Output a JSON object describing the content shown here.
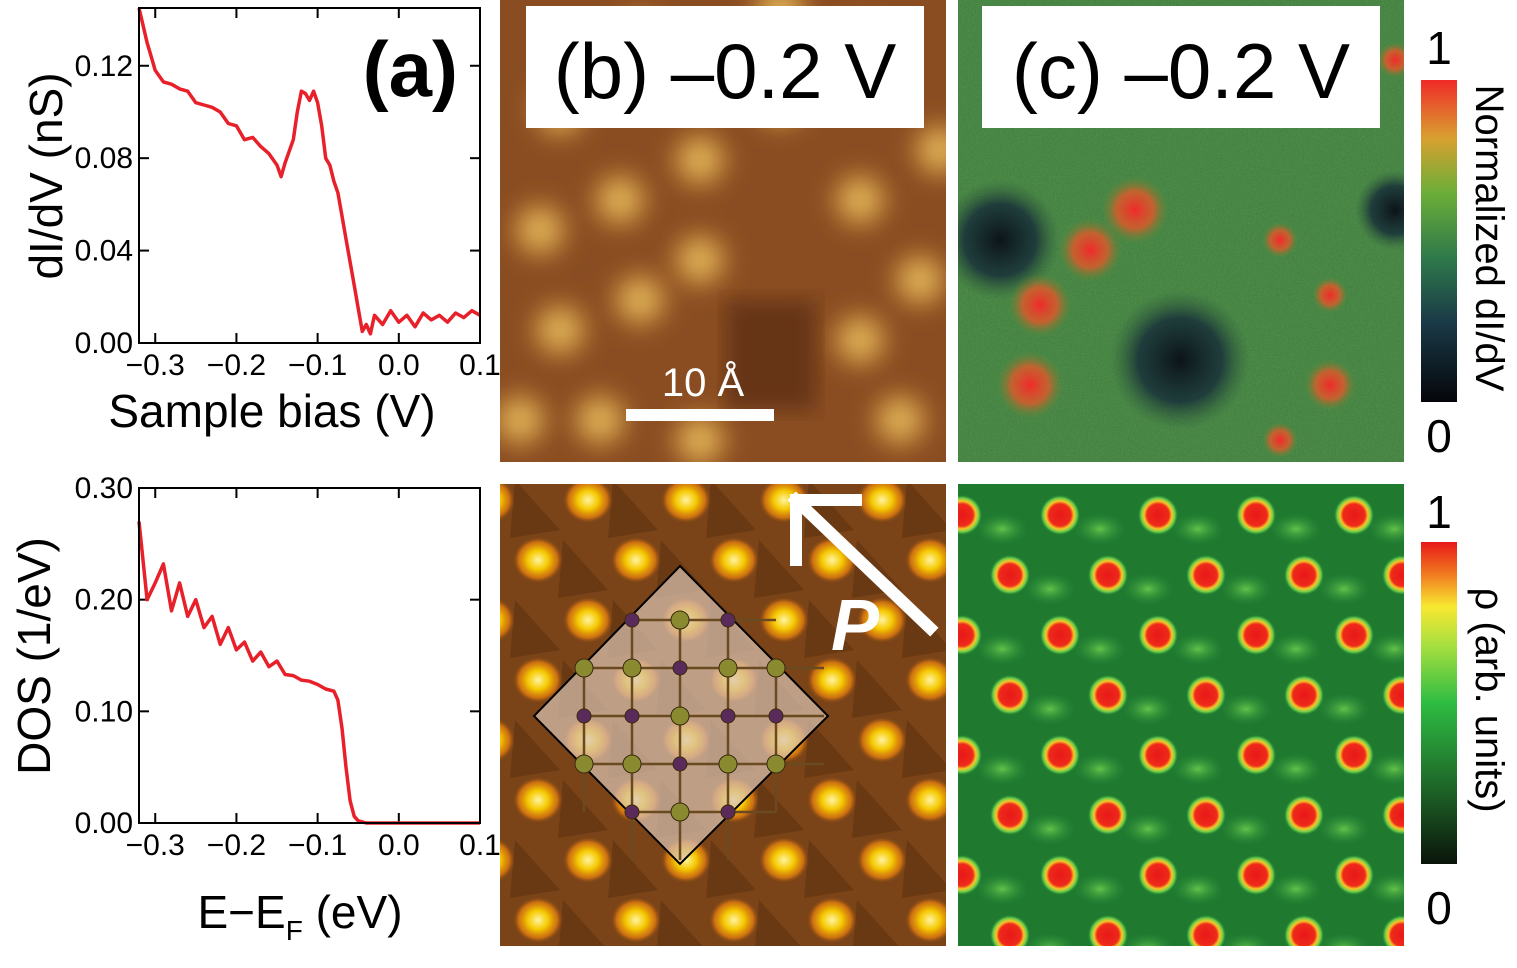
{
  "chart_data": [
    {
      "panel": "(a)",
      "type": "line",
      "title": "(a)",
      "xlabel": "Sample bias (V)",
      "ylabel": "dI/dV (nS)",
      "xlim": [
        -0.32,
        0.1
      ],
      "ylim": [
        0.0,
        0.145
      ],
      "xticks": [
        "−0.3",
        "−0.2",
        "−0.1",
        "0.0",
        "0.1"
      ],
      "yticks": [
        "0.00",
        "0.04",
        "0.08",
        "0.12"
      ],
      "color": "#e8202a",
      "x": [
        -0.32,
        -0.31,
        -0.305,
        -0.3,
        -0.29,
        -0.28,
        -0.27,
        -0.26,
        -0.25,
        -0.24,
        -0.23,
        -0.22,
        -0.21,
        -0.2,
        -0.19,
        -0.18,
        -0.17,
        -0.16,
        -0.15,
        -0.145,
        -0.14,
        -0.13,
        -0.125,
        -0.12,
        -0.115,
        -0.11,
        -0.105,
        -0.1,
        -0.095,
        -0.09,
        -0.085,
        -0.08,
        -0.075,
        -0.07,
        -0.065,
        -0.06,
        -0.055,
        -0.05,
        -0.045,
        -0.04,
        -0.035,
        -0.03,
        -0.02,
        -0.01,
        0.0,
        0.01,
        0.02,
        0.03,
        0.04,
        0.05,
        0.06,
        0.07,
        0.08,
        0.09,
        0.1
      ],
      "y": [
        0.145,
        0.13,
        0.124,
        0.118,
        0.113,
        0.112,
        0.11,
        0.109,
        0.104,
        0.103,
        0.102,
        0.1,
        0.095,
        0.094,
        0.088,
        0.089,
        0.085,
        0.082,
        0.077,
        0.072,
        0.078,
        0.088,
        0.1,
        0.109,
        0.108,
        0.105,
        0.109,
        0.104,
        0.094,
        0.08,
        0.077,
        0.07,
        0.065,
        0.055,
        0.045,
        0.035,
        0.025,
        0.015,
        0.005,
        0.008,
        0.004,
        0.012,
        0.008,
        0.014,
        0.009,
        0.012,
        0.007,
        0.013,
        0.01,
        0.012,
        0.009,
        0.013,
        0.011,
        0.014,
        0.012
      ]
    },
    {
      "panel": "(a) bottom",
      "type": "line",
      "xlabel": "E−E",
      "xlabel_sub": "F",
      "xlabel_unit": " (eV)",
      "ylabel": "DOS (1/eV)",
      "xlim": [
        -0.32,
        0.1
      ],
      "ylim": [
        0.0,
        0.3
      ],
      "xticks": [
        "−0.3",
        "−0.2",
        "−0.1",
        "0.0",
        "0.1"
      ],
      "yticks": [
        "0.00",
        "0.10",
        "0.20",
        "0.30"
      ],
      "color": "#e8202a",
      "x": [
        -0.32,
        -0.31,
        -0.3,
        -0.29,
        -0.28,
        -0.27,
        -0.26,
        -0.25,
        -0.24,
        -0.23,
        -0.22,
        -0.21,
        -0.2,
        -0.19,
        -0.18,
        -0.17,
        -0.16,
        -0.15,
        -0.14,
        -0.13,
        -0.12,
        -0.11,
        -0.1,
        -0.09,
        -0.08,
        -0.075,
        -0.07,
        -0.065,
        -0.06,
        -0.055,
        -0.05,
        -0.045,
        -0.04,
        -0.03,
        0.0,
        0.05,
        0.1
      ],
      "y": [
        0.27,
        0.2,
        0.215,
        0.232,
        0.19,
        0.215,
        0.185,
        0.2,
        0.175,
        0.185,
        0.16,
        0.175,
        0.155,
        0.162,
        0.145,
        0.153,
        0.14,
        0.145,
        0.133,
        0.132,
        0.128,
        0.127,
        0.124,
        0.12,
        0.118,
        0.11,
        0.085,
        0.05,
        0.02,
        0.006,
        0.002,
        0.001,
        0.0,
        0.0,
        0.0,
        0.0,
        0.0
      ]
    }
  ],
  "panels": {
    "b_label": "(b) –0.2 V",
    "c_label": "(c) –0.2 V",
    "scale_bar": "10 Å",
    "p_label": "P",
    "colorbar_top": {
      "max": "1",
      "min": "0",
      "label": "Normalized dI/dV"
    },
    "colorbar_bottom": {
      "max": "1",
      "min": "0",
      "label": "ρ (arb. units)"
    }
  },
  "colors": {
    "stm_dark": "#6b3a1a",
    "stm_bright": "#f0c050",
    "map_green": "#3e8a3a",
    "map_red": "#e82828",
    "map_dark": "#0e1a22"
  }
}
